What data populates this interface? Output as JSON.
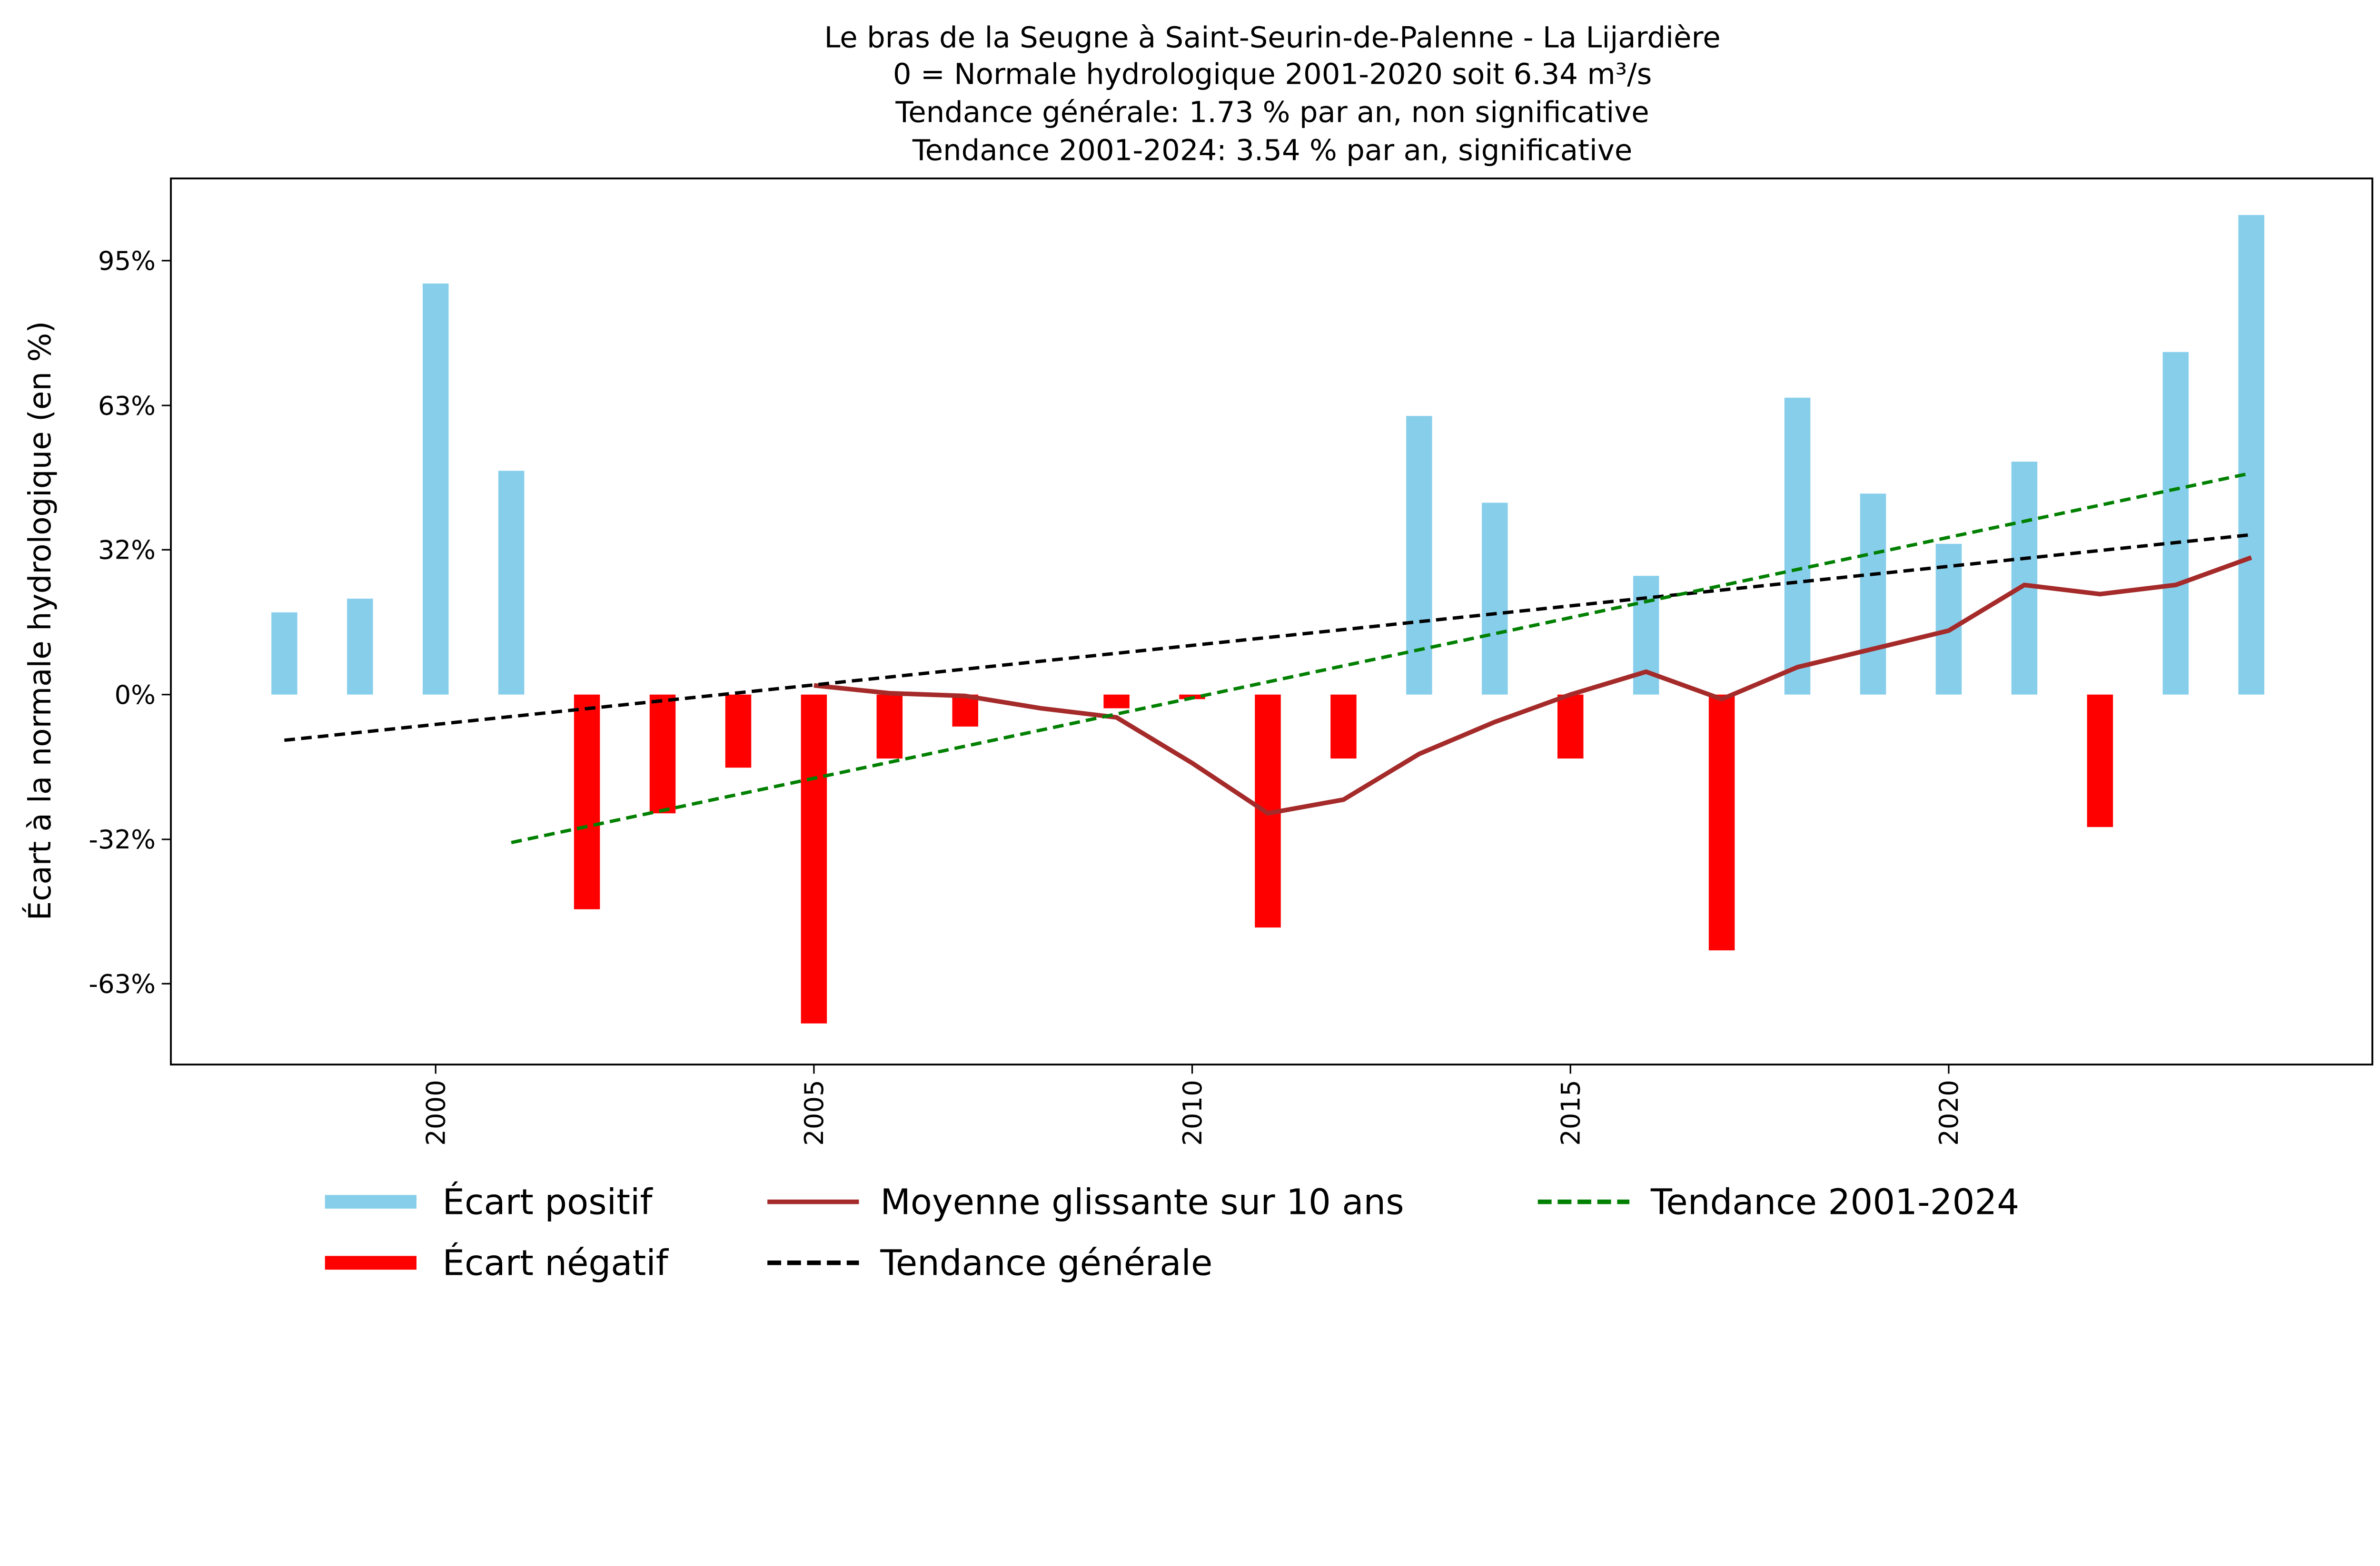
{
  "chart_data": {
    "type": "bar",
    "title_lines": [
      "Le bras de la Seugne à Saint-Seurin-de-Palenne - La Lijardière",
      "0 = Normale hydrologique 2001-2020 soit 6.34 m³/s",
      "Tendance générale: 1.73 % par an, non significative",
      "Tendance 2001-2024: 3.54 % par an, significative"
    ],
    "xlabel": "",
    "ylabel": "Écart à la normale hydrologique (en %)",
    "xlim": [
      1996.5,
      2025.6
    ],
    "ylim": [
      -81,
      113
    ],
    "x_ticks": [
      2000,
      2005,
      2010,
      2015,
      2020
    ],
    "x_tick_labels": [
      "2000",
      "2005",
      "2010",
      "2015",
      "2020"
    ],
    "y_ticks": [
      95,
      63.3,
      31.7,
      0,
      -31.7,
      -63.3
    ],
    "y_tick_labels": [
      "95%",
      "63%",
      "32%",
      "0%",
      "-32%",
      "-63%"
    ],
    "years": [
      1998,
      1999,
      2000,
      2001,
      2002,
      2003,
      2004,
      2005,
      2006,
      2007,
      2008,
      2009,
      2010,
      2011,
      2012,
      2013,
      2014,
      2015,
      2016,
      2017,
      2018,
      2019,
      2020,
      2021,
      2022,
      2023,
      2024
    ],
    "values": [
      18,
      21,
      90,
      49,
      -47,
      -26,
      -16,
      -72,
      -14,
      -7,
      0,
      -3,
      -1,
      -51,
      -14,
      61,
      42,
      -14,
      26,
      -56,
      65,
      44,
      33,
      51,
      -29,
      75,
      105
    ],
    "moving_average": {
      "name": "Moyenne glissante sur 10 ans",
      "years": [
        2005,
        2006,
        2007,
        2008,
        2009,
        2010,
        2011,
        2012,
        2013,
        2014,
        2015,
        2016,
        2017,
        2018,
        2019,
        2020,
        2021,
        2022,
        2023,
        2024
      ],
      "values": [
        2,
        0.3,
        -0.3,
        -3,
        -5,
        -15,
        -26,
        -23,
        -13,
        -6,
        0,
        5,
        -1,
        6,
        10,
        14,
        24,
        22,
        24,
        30
      ]
    },
    "trend_general": {
      "name": "Tendance générale",
      "x": [
        1998,
        2024
      ],
      "y": [
        -10,
        35
      ]
    },
    "trend_recent": {
      "name": "Tendance 2001-2024",
      "x": [
        2001,
        2024
      ],
      "y": [
        -32.4,
        48.5
      ]
    },
    "legend": {
      "placement": "bottom",
      "entries": [
        "Écart positif",
        "Écart négatif",
        "Moyenne glissante sur 10 ans",
        "Tendance générale",
        "Tendance 2001-2024"
      ]
    },
    "colors": {
      "positive": "#87ceeb",
      "negative": "#ff0000",
      "moving_average": "#a52a2a",
      "trend_general": "#000000",
      "trend_recent": "#008000"
    },
    "grid": false
  }
}
